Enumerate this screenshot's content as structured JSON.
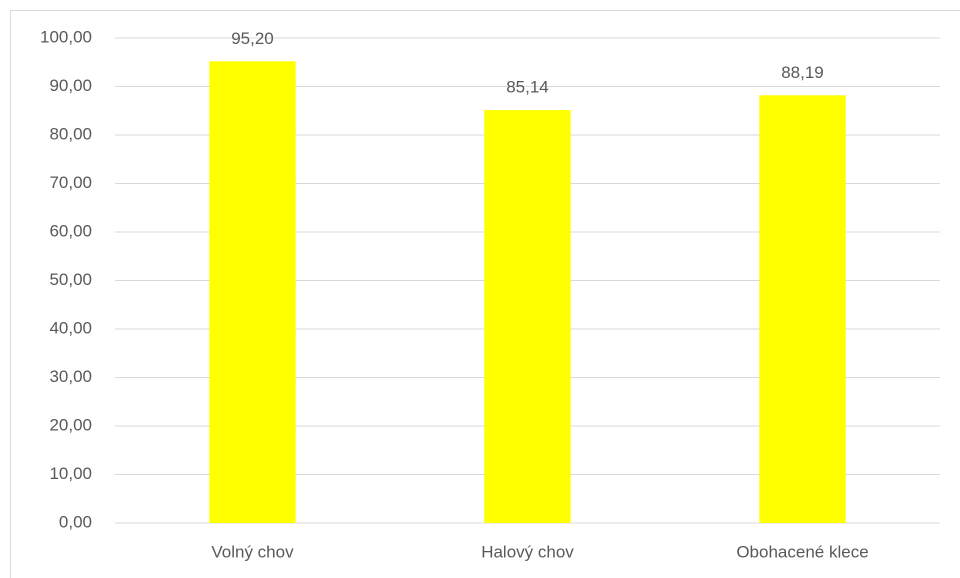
{
  "chart_data": {
    "type": "bar",
    "categories": [
      "Volný chov",
      "Halový chov",
      "Obohacené klece"
    ],
    "values": [
      95.2,
      85.14,
      88.19
    ],
    "value_labels": [
      "95,20",
      "85,14",
      "88,19"
    ],
    "color": "#ffff00",
    "ylim": [
      0,
      100
    ],
    "yticks": [
      {
        "value": 0,
        "label": "0,00"
      },
      {
        "value": 10,
        "label": "10,00"
      },
      {
        "value": 20,
        "label": "20,00"
      },
      {
        "value": 30,
        "label": "30,00"
      },
      {
        "value": 40,
        "label": "40,00"
      },
      {
        "value": 50,
        "label": "50,00"
      },
      {
        "value": 60,
        "label": "60,00"
      },
      {
        "value": 70,
        "label": "70,00"
      },
      {
        "value": 80,
        "label": "80,00"
      },
      {
        "value": 90,
        "label": "90,00"
      },
      {
        "value": 100,
        "label": "100,00"
      }
    ],
    "grid": true
  }
}
